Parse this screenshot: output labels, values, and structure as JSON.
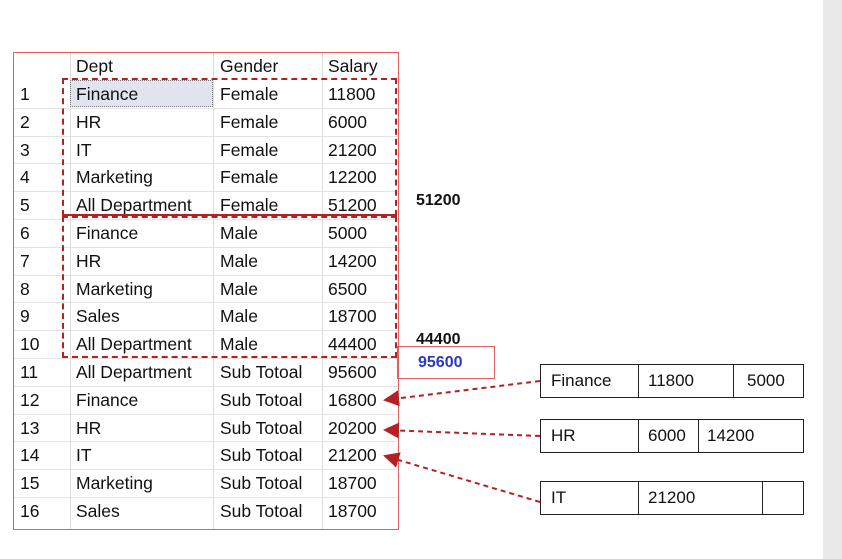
{
  "grid": {
    "columns": [
      "Dept",
      "Gender",
      "Salary"
    ],
    "rows": [
      {
        "n": "1",
        "dept": "Finance",
        "gender": "Female",
        "salary": "11800"
      },
      {
        "n": "2",
        "dept": "HR",
        "gender": "Female",
        "salary": "6000"
      },
      {
        "n": "3",
        "dept": "IT",
        "gender": "Female",
        "salary": "21200"
      },
      {
        "n": "4",
        "dept": "Marketing",
        "gender": "Female",
        "salary": "12200"
      },
      {
        "n": "5",
        "dept": "All Department",
        "gender": "Female",
        "salary": "51200"
      },
      {
        "n": "6",
        "dept": "Finance",
        "gender": "Male",
        "salary": "5000"
      },
      {
        "n": "7",
        "dept": "HR",
        "gender": "Male",
        "salary": "14200"
      },
      {
        "n": "8",
        "dept": "Marketing",
        "gender": "Male",
        "salary": "6500"
      },
      {
        "n": "9",
        "dept": "Sales",
        "gender": "Male",
        "salary": "18700"
      },
      {
        "n": "10",
        "dept": "All Department",
        "gender": "Male",
        "salary": "44400"
      },
      {
        "n": "11",
        "dept": "All Department",
        "gender": "Sub Totoal",
        "salary": "95600"
      },
      {
        "n": "12",
        "dept": "Finance",
        "gender": "Sub Totoal",
        "salary": "16800"
      },
      {
        "n": "13",
        "dept": "HR",
        "gender": "Sub Totoal",
        "salary": "20200"
      },
      {
        "n": "14",
        "dept": "IT",
        "gender": "Sub Totoal",
        "salary": "21200"
      },
      {
        "n": "15",
        "dept": "Marketing",
        "gender": "Sub Totoal",
        "salary": "18700"
      },
      {
        "n": "16",
        "dept": "Sales",
        "gender": "Sub Totoal",
        "salary": "18700"
      }
    ]
  },
  "annotations": {
    "female_total": "51200",
    "male_total": "44400",
    "grand_total": "95600",
    "accent_color": "#b22222",
    "total_text_color": "#2a36c8"
  },
  "breakdowns": [
    {
      "dept": "Finance",
      "values": [
        "11800",
        "5000"
      ]
    },
    {
      "dept": "HR",
      "values": [
        "6000",
        "14200"
      ]
    },
    {
      "dept": "IT",
      "values": [
        "21200",
        ""
      ]
    }
  ]
}
